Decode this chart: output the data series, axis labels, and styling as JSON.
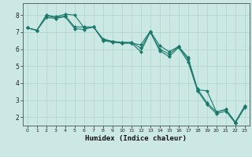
{
  "xlabel": "Humidex (Indice chaleur)",
  "bg_color": "#cce8e4",
  "grid_color": "#aad4cc",
  "line_color": "#1a7a6a",
  "xlim": [
    -0.5,
    23.5
  ],
  "ylim": [
    1.5,
    8.7
  ],
  "xticks": [
    0,
    1,
    2,
    3,
    4,
    5,
    6,
    7,
    8,
    9,
    10,
    11,
    12,
    13,
    14,
    15,
    16,
    17,
    18,
    19,
    20,
    21,
    22,
    23
  ],
  "yticks": [
    2,
    3,
    4,
    5,
    6,
    7,
    8
  ],
  "line1_x": [
    0,
    1,
    2,
    3,
    4,
    5,
    6,
    7,
    8,
    9,
    10,
    11,
    12,
    13,
    14,
    15,
    16,
    17,
    18,
    19,
    20,
    21,
    22,
    23
  ],
  "line1_y": [
    7.25,
    7.1,
    8.0,
    7.9,
    8.05,
    8.0,
    7.25,
    7.3,
    6.5,
    6.4,
    6.35,
    6.35,
    6.25,
    7.05,
    6.2,
    5.85,
    6.15,
    5.5,
    3.65,
    2.85,
    2.3,
    2.45,
    1.7,
    2.65
  ],
  "line2_x": [
    0,
    1,
    2,
    3,
    4,
    5,
    6,
    7,
    8,
    9,
    10,
    11,
    12,
    13,
    14,
    15,
    16,
    17,
    18,
    19,
    20,
    21,
    22,
    23
  ],
  "line2_y": [
    7.25,
    7.1,
    7.85,
    7.8,
    7.9,
    7.2,
    7.15,
    7.3,
    6.6,
    6.45,
    6.35,
    6.35,
    5.85,
    7.0,
    5.9,
    5.55,
    6.1,
    5.25,
    3.55,
    2.75,
    2.2,
    2.35,
    1.65,
    2.55
  ],
  "line3_x": [
    0,
    1,
    2,
    3,
    4,
    5,
    6,
    7,
    8,
    9,
    10,
    11,
    12,
    13,
    14,
    15,
    16,
    17,
    18,
    19,
    20,
    21,
    22,
    23
  ],
  "line3_y": [
    7.25,
    7.1,
    7.95,
    7.85,
    7.95,
    7.3,
    7.3,
    7.3,
    6.55,
    6.45,
    6.4,
    6.4,
    6.05,
    7.0,
    6.0,
    5.7,
    6.15,
    5.4,
    3.6,
    3.55,
    2.3,
    2.45,
    1.7,
    2.65
  ]
}
